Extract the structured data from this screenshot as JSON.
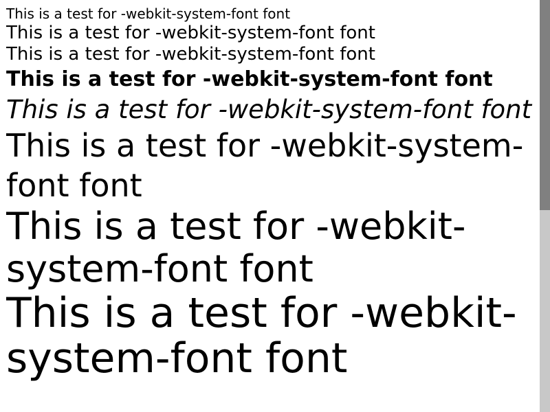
{
  "lines": [
    "This is a test for -webkit-system-font font",
    "This is a test for -webkit-system-font font",
    "This is a test for -webkit-system-font font",
    "This is a test for -webkit-system-font font",
    "This is a test for -webkit-system-font font",
    "This is a test for -webkit-system-font font",
    "This is a test for -webkit-system-font font",
    "This is a test for -webkit-system-font font"
  ],
  "scrollbar": {
    "scroll_position_fraction": 0,
    "visible_fraction": 0.51
  },
  "colors": {
    "text": "#000000",
    "background": "#ffffff",
    "scrollbar_track": "#c8c8c8",
    "scrollbar_thumb": "#808080"
  }
}
